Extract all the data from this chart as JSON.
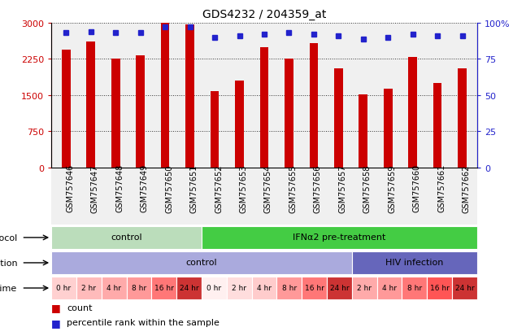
{
  "title": "GDS4232 / 204359_at",
  "samples": [
    "GSM757646",
    "GSM757647",
    "GSM757648",
    "GSM757649",
    "GSM757650",
    "GSM757651",
    "GSM757652",
    "GSM757653",
    "GSM757654",
    "GSM757655",
    "GSM757656",
    "GSM757657",
    "GSM757658",
    "GSM757659",
    "GSM757660",
    "GSM757661",
    "GSM757662"
  ],
  "counts": [
    2450,
    2620,
    2250,
    2320,
    3000,
    2960,
    1580,
    1800,
    2500,
    2250,
    2580,
    2050,
    1510,
    1640,
    2290,
    1760,
    2060
  ],
  "percentile_ranks": [
    93,
    94,
    93,
    93,
    97,
    97,
    90,
    91,
    92,
    93,
    92,
    91,
    89,
    90,
    92,
    91,
    91
  ],
  "bar_color": "#cc0000",
  "dot_color": "#2222cc",
  "ylim_left": [
    0,
    3000
  ],
  "ylim_right": [
    0,
    100
  ],
  "yticks_left": [
    0,
    750,
    1500,
    2250,
    3000
  ],
  "yticks_right": [
    0,
    25,
    50,
    75,
    100
  ],
  "ytick_labels_right": [
    "0",
    "25",
    "50",
    "75",
    "100%"
  ],
  "background_color": "#ffffff",
  "plot_bg_color": "#f0f0f0",
  "protocol_labels": [
    {
      "text": "control",
      "start": 0,
      "end": 6,
      "color": "#bbddbb"
    },
    {
      "text": "IFNα2 pre-treatment",
      "start": 6,
      "end": 17,
      "color": "#44cc44"
    }
  ],
  "infection_labels": [
    {
      "text": "control",
      "start": 0,
      "end": 12,
      "color": "#aaaadd"
    },
    {
      "text": "HIV infection",
      "start": 12,
      "end": 17,
      "color": "#6666bb"
    }
  ],
  "time_labels": [
    "0 hr",
    "2 hr",
    "4 hr",
    "8 hr",
    "16 hr",
    "24 hr",
    "0 hr",
    "2 hr",
    "4 hr",
    "8 hr",
    "16 hr",
    "24 hr",
    "2 hr",
    "4 hr",
    "8 hr",
    "16 hr",
    "24 hr"
  ],
  "time_colors": [
    "#ffd0d0",
    "#ffbbbb",
    "#ffaaaa",
    "#ff9999",
    "#ff7777",
    "#cc3333",
    "#fff0f0",
    "#ffdddd",
    "#ffcccc",
    "#ff9999",
    "#ff7777",
    "#cc3333",
    "#ffaaaa",
    "#ff9999",
    "#ff7777",
    "#ff5555",
    "#cc3333"
  ],
  "legend_count_color": "#cc0000",
  "legend_dot_color": "#2222cc",
  "bar_width": 0.35
}
